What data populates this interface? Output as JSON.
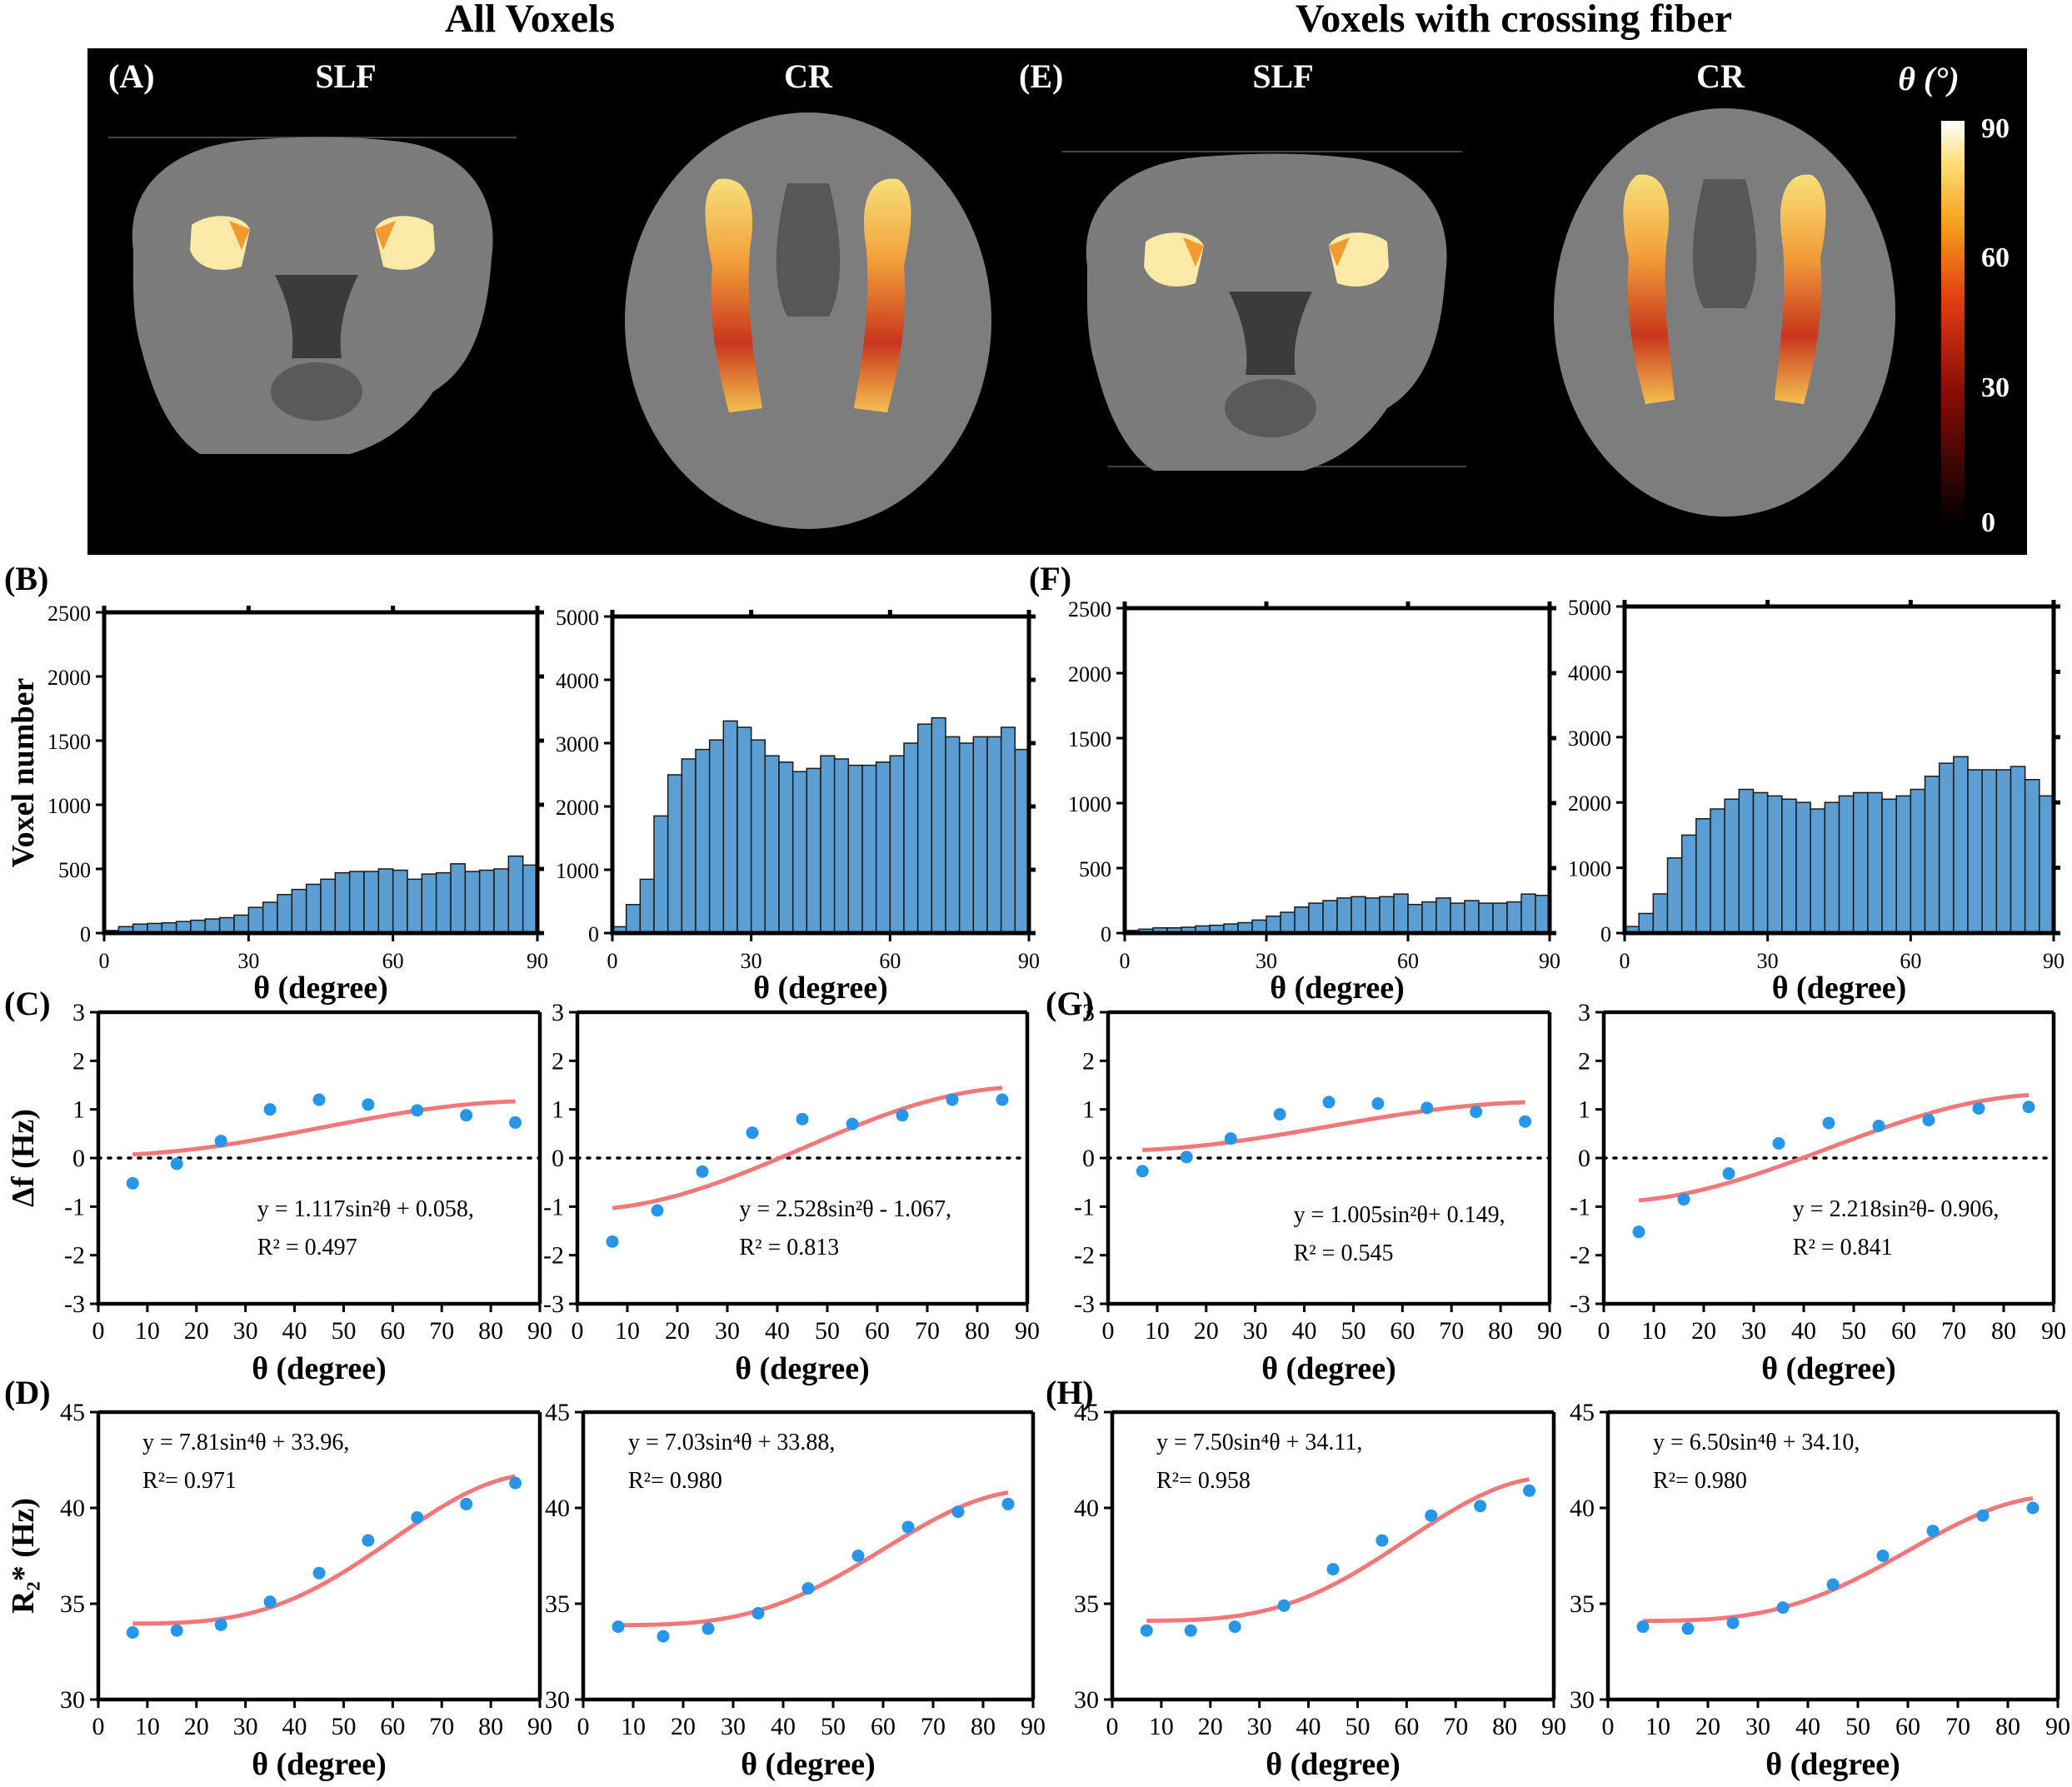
{
  "titles": {
    "left": "All Voxels",
    "right": "Voxels with crossing fiber"
  },
  "panel_letters": {
    "A": "(A)",
    "B": "(B)",
    "C": "(C)",
    "D": "(D)",
    "E": "(E)",
    "F": "(F)",
    "G": "(G)",
    "H": "(H)"
  },
  "image_labels": {
    "a1": "SLF",
    "a2": "CR",
    "e1": "SLF",
    "e2": "CR"
  },
  "colorbar": {
    "label": "θ (°)",
    "ticks": [
      "90",
      "60",
      "30",
      "0"
    ]
  },
  "colors": {
    "bar": "#5b9ed1",
    "fit": "#f0787a",
    "point": "#2896e8",
    "image_bg": "#000000"
  },
  "chart_data": [
    {
      "id": "B1",
      "type": "bar",
      "title": "",
      "xlabel": "θ (degree)",
      "ylabel": "Voxel number",
      "xlim": [
        0,
        90
      ],
      "ylim": [
        0,
        2500
      ],
      "xticks": [
        0,
        30,
        60,
        90
      ],
      "yticks": [
        0,
        500,
        1000,
        1500,
        2000,
        2500
      ],
      "bin_width": 3,
      "values": [
        20,
        50,
        70,
        75,
        80,
        90,
        100,
        110,
        120,
        140,
        200,
        240,
        300,
        340,
        380,
        420,
        470,
        480,
        480,
        500,
        490,
        420,
        460,
        470,
        540,
        480,
        490,
        500,
        600,
        530
      ]
    },
    {
      "id": "B2",
      "type": "bar",
      "title": "",
      "xlabel": "θ (degree)",
      "ylabel": "",
      "xlim": [
        0,
        90
      ],
      "ylim": [
        0,
        5000
      ],
      "xticks": [
        0,
        30,
        60,
        90
      ],
      "yticks": [
        0,
        1000,
        2000,
        3000,
        4000,
        5000
      ],
      "bin_width": 3,
      "values": [
        100,
        450,
        850,
        1850,
        2500,
        2750,
        2900,
        3050,
        3350,
        3250,
        3050,
        2800,
        2700,
        2550,
        2600,
        2800,
        2750,
        2650,
        2650,
        2700,
        2800,
        3000,
        3300,
        3400,
        3100,
        3000,
        3100,
        3100,
        3250,
        2900
      ]
    },
    {
      "id": "F1",
      "type": "bar",
      "title": "",
      "xlabel": "θ (degree)",
      "ylabel": "",
      "xlim": [
        0,
        90
      ],
      "ylim": [
        0,
        2500
      ],
      "xticks": [
        0,
        30,
        60,
        90
      ],
      "yticks": [
        0,
        500,
        1000,
        1500,
        2000,
        2500
      ],
      "bin_width": 3,
      "values": [
        20,
        30,
        40,
        40,
        45,
        55,
        60,
        70,
        80,
        100,
        130,
        160,
        200,
        230,
        250,
        270,
        280,
        270,
        280,
        300,
        220,
        240,
        270,
        230,
        250,
        230,
        230,
        240,
        300,
        290
      ]
    },
    {
      "id": "F2",
      "type": "bar",
      "title": "",
      "xlabel": "θ (degree)",
      "ylabel": "",
      "xlim": [
        0,
        90
      ],
      "ylim": [
        0,
        5000
      ],
      "xticks": [
        0,
        30,
        60,
        90
      ],
      "yticks": [
        0,
        1000,
        2000,
        3000,
        4000,
        5000
      ],
      "bin_width": 3,
      "values": [
        100,
        300,
        600,
        1150,
        1500,
        1750,
        1900,
        2050,
        2200,
        2150,
        2100,
        2050,
        2000,
        1900,
        2000,
        2100,
        2150,
        2150,
        2050,
        2100,
        2200,
        2400,
        2600,
        2700,
        2500,
        2500,
        2500,
        2550,
        2350,
        2100
      ]
    },
    {
      "id": "C1",
      "type": "scatter",
      "xlabel": "θ (degree)",
      "ylabel": "Δf (Hz)",
      "xlim": [
        0,
        90
      ],
      "ylim": [
        -3,
        3
      ],
      "xticks": [
        0,
        10,
        20,
        30,
        40,
        50,
        60,
        70,
        80,
        90
      ],
      "yticks": [
        -3,
        -2,
        -1,
        0,
        1,
        2,
        3
      ],
      "x": [
        7,
        16,
        25,
        35,
        45,
        55,
        65,
        75,
        85
      ],
      "y": [
        -0.52,
        -0.12,
        0.35,
        1.0,
        1.2,
        1.1,
        0.98,
        0.88,
        0.73
      ],
      "fit": {
        "form": "sin2",
        "a": 1.117,
        "b": 0.058
      },
      "equation": "y = 1.117sin²θ + 0.058,",
      "r2": "R² = 0.497",
      "zero_line": true
    },
    {
      "id": "C2",
      "type": "scatter",
      "xlabel": "θ (degree)",
      "ylabel": "",
      "xlim": [
        0,
        90
      ],
      "ylim": [
        -3,
        3
      ],
      "xticks": [
        0,
        10,
        20,
        30,
        40,
        50,
        60,
        70,
        80,
        90
      ],
      "yticks": [
        -3,
        -2,
        -1,
        0,
        1,
        2,
        3
      ],
      "x": [
        7,
        16,
        25,
        35,
        45,
        55,
        65,
        75,
        85
      ],
      "y": [
        -1.72,
        -1.08,
        -0.28,
        0.52,
        0.8,
        0.7,
        0.88,
        1.2,
        1.2
      ],
      "fit": {
        "form": "sin2",
        "a": 2.528,
        "b": -1.067
      },
      "equation": "y = 2.528sin²θ - 1.067,",
      "r2": "R² = 0.813",
      "zero_line": true
    },
    {
      "id": "G1",
      "type": "scatter",
      "xlabel": "θ (degree)",
      "ylabel": "",
      "xlim": [
        0,
        90
      ],
      "ylim": [
        -3,
        3
      ],
      "xticks": [
        0,
        10,
        20,
        30,
        40,
        50,
        60,
        70,
        80,
        90
      ],
      "yticks": [
        -3,
        -2,
        -1,
        0,
        1,
        2,
        3
      ],
      "x": [
        7,
        16,
        25,
        35,
        45,
        55,
        65,
        75,
        85
      ],
      "y": [
        -0.27,
        0.02,
        0.4,
        0.9,
        1.15,
        1.12,
        1.03,
        0.95,
        0.75
      ],
      "fit": {
        "form": "sin2",
        "a": 1.005,
        "b": 0.149
      },
      "equation": "y = 1.005sin²θ+ 0.149,",
      "r2": "R² = 0.545",
      "zero_line": true
    },
    {
      "id": "G2",
      "type": "scatter",
      "xlabel": "θ (degree)",
      "ylabel": "",
      "xlim": [
        0,
        90
      ],
      "ylim": [
        -3,
        3
      ],
      "xticks": [
        0,
        10,
        20,
        30,
        40,
        50,
        60,
        70,
        80,
        90
      ],
      "yticks": [
        -3,
        -2,
        -1,
        0,
        1,
        2,
        3
      ],
      "x": [
        7,
        16,
        25,
        35,
        45,
        55,
        65,
        75,
        85
      ],
      "y": [
        -1.52,
        -0.85,
        -0.32,
        0.3,
        0.72,
        0.66,
        0.78,
        1.02,
        1.05
      ],
      "fit": {
        "form": "sin2",
        "a": 2.218,
        "b": -0.906
      },
      "equation": "y = 2.218sin²θ- 0.906,",
      "r2": "R² = 0.841",
      "zero_line": true
    },
    {
      "id": "D1",
      "type": "scatter",
      "xlabel": "θ (degree)",
      "ylabel": "R₂* (Hz)",
      "xlim": [
        0,
        90
      ],
      "ylim": [
        30,
        45
      ],
      "xticks": [
        0,
        10,
        20,
        30,
        40,
        50,
        60,
        70,
        80,
        90
      ],
      "yticks": [
        30,
        35,
        40,
        45
      ],
      "x": [
        7,
        16,
        25,
        35,
        45,
        55,
        65,
        75,
        85
      ],
      "y": [
        33.5,
        33.6,
        33.9,
        35.1,
        36.6,
        38.3,
        39.5,
        40.2,
        41.3
      ],
      "fit": {
        "form": "sin4",
        "a": 7.81,
        "b": 33.96
      },
      "equation": "y = 7.81sin⁴θ + 33.96,",
      "r2": "R²= 0.971",
      "zero_line": false
    },
    {
      "id": "D2",
      "type": "scatter",
      "xlabel": "θ (degree)",
      "ylabel": "",
      "xlim": [
        0,
        90
      ],
      "ylim": [
        30,
        45
      ],
      "xticks": [
        0,
        10,
        20,
        30,
        40,
        50,
        60,
        70,
        80,
        90
      ],
      "yticks": [
        30,
        35,
        40,
        45
      ],
      "x": [
        7,
        16,
        25,
        35,
        45,
        55,
        65,
        75,
        85
      ],
      "y": [
        33.8,
        33.3,
        33.7,
        34.5,
        35.8,
        37.5,
        39.0,
        39.8,
        40.2
      ],
      "fit": {
        "form": "sin4",
        "a": 7.03,
        "b": 33.88
      },
      "equation": "y = 7.03sin⁴θ + 33.88,",
      "r2": "R²= 0.980",
      "zero_line": false
    },
    {
      "id": "H1",
      "type": "scatter",
      "xlabel": "θ (degree)",
      "ylabel": "",
      "xlim": [
        0,
        90
      ],
      "ylim": [
        30,
        45
      ],
      "xticks": [
        0,
        10,
        20,
        30,
        40,
        50,
        60,
        70,
        80,
        90
      ],
      "yticks": [
        30,
        35,
        40,
        45
      ],
      "x": [
        7,
        16,
        25,
        35,
        45,
        55,
        65,
        75,
        85
      ],
      "y": [
        33.6,
        33.6,
        33.8,
        34.9,
        36.8,
        38.3,
        39.6,
        40.1,
        40.9
      ],
      "fit": {
        "form": "sin4",
        "a": 7.5,
        "b": 34.11
      },
      "equation": "y = 7.50sin⁴θ + 34.11,",
      "r2": "R²= 0.958",
      "zero_line": false
    },
    {
      "id": "H2",
      "type": "scatter",
      "xlabel": "θ (degree)",
      "ylabel": "",
      "xlim": [
        0,
        90
      ],
      "ylim": [
        30,
        45
      ],
      "xticks": [
        0,
        10,
        20,
        30,
        40,
        50,
        60,
        70,
        80,
        90
      ],
      "yticks": [
        30,
        35,
        40,
        45
      ],
      "x": [
        7,
        16,
        25,
        35,
        45,
        55,
        65,
        75,
        85
      ],
      "y": [
        33.8,
        33.7,
        34.0,
        34.8,
        36.0,
        37.5,
        38.8,
        39.6,
        40.0
      ],
      "fit": {
        "form": "sin4",
        "a": 6.5,
        "b": 34.1
      },
      "equation": "y = 6.50sin⁴θ + 34.10,",
      "r2": "R²= 0.980",
      "zero_line": false
    }
  ]
}
